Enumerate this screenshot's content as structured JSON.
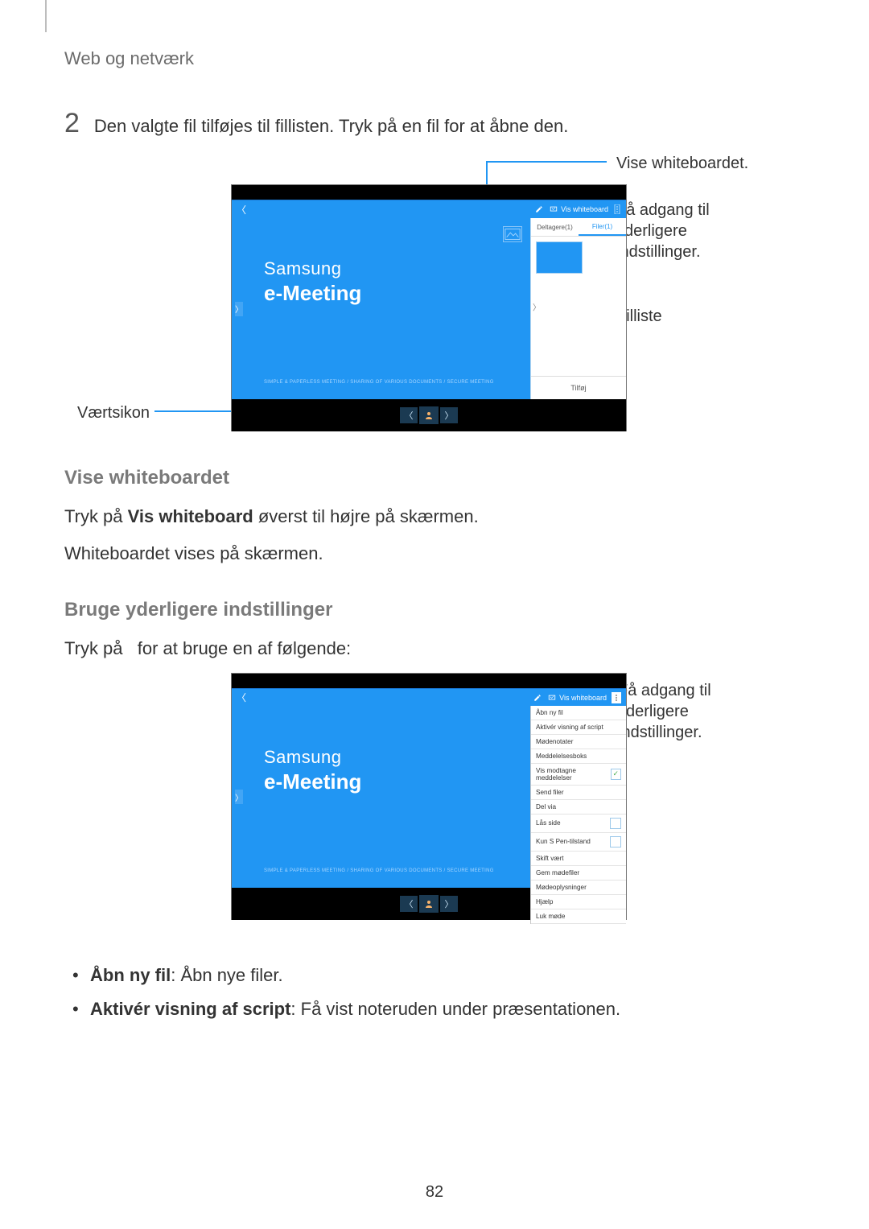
{
  "section_header": "Web og netværk",
  "step": {
    "number": "2",
    "text": "Den valgte fil tilføjes til fillisten. Tryk på en fil for at åbne den."
  },
  "figure1": {
    "brand_line1": "Samsung",
    "brand_line2": "e-Meeting",
    "brand_sub": "SIMPLE & PAPERLESS MEETING / SHARING OF VARIOUS DOCUMENTS / SECURE MEETING",
    "titlebar_whiteboard": "Vis whiteboard",
    "side_tab_participants": "Deltagere(1)",
    "side_tab_files": "Filer(1)",
    "side_footer": "Tilføj",
    "callout_whiteboard": "Vise whiteboardet.",
    "callout_settings_l1": "Få adgang til",
    "callout_settings_l2": "yderligere",
    "callout_settings_l3": "indstillinger.",
    "callout_filelist": "Filliste",
    "callout_host": "Værtsikon",
    "colors": {
      "accent": "#2196f3",
      "accent_light": "#42a5f5",
      "background": "#ffffff",
      "bottom_bar": "#000000",
      "nav_btn": "#1b3a52",
      "text": "#333333",
      "muted_text": "#6b6b6b"
    }
  },
  "subhead1": "Vise whiteboardet",
  "para1_prefix": "Tryk på ",
  "para1_bold": "Vis whiteboard",
  "para1_suffix": " øverst til højre på skærmen.",
  "para2": "Whiteboardet vises på skærmen.",
  "subhead2": "Bruge yderligere indstillinger",
  "para3_prefix": "Tryk på ",
  "para3_suffix": " for at bruge en af følgende:",
  "figure2": {
    "brand_line1": "Samsung",
    "brand_line2": "e-Meeting",
    "brand_sub": "SIMPLE & PAPERLESS MEETING / SHARING OF VARIOUS DOCUMENTS / SECURE MEETING",
    "titlebar_whiteboard": "Vis whiteboard",
    "dropdown_items": [
      {
        "label": "Åbn ny fil",
        "check": null
      },
      {
        "label": "Aktivér visning af script",
        "check": null
      },
      {
        "label": "Mødenotater",
        "check": null
      },
      {
        "label": "Meddelelsesboks",
        "check": null
      },
      {
        "label": "Vis modtagne meddelelser",
        "check": "checked"
      },
      {
        "label": "Send filer",
        "check": null
      },
      {
        "label": "Del via",
        "check": null
      },
      {
        "label": "Lås side",
        "check": "unchecked"
      },
      {
        "label": "Kun S Pen-tilstand",
        "check": "unchecked"
      },
      {
        "label": "Skift vært",
        "check": null
      },
      {
        "label": "Gem mødefiler",
        "check": null
      },
      {
        "label": "Mødeoplysninger",
        "check": null
      },
      {
        "label": "Hjælp",
        "check": null
      },
      {
        "label": "Luk møde",
        "check": null
      }
    ],
    "callout_settings_l1": "Få adgang til",
    "callout_settings_l2": "yderligere",
    "callout_settings_l3": "indstillinger."
  },
  "bullets": [
    {
      "bold": "Åbn ny fil",
      "rest": ": Åbn nye filer."
    },
    {
      "bold": "Aktivér visning af script",
      "rest": ": Få vist noteruden under præsentationen."
    }
  ],
  "page_number": "82"
}
